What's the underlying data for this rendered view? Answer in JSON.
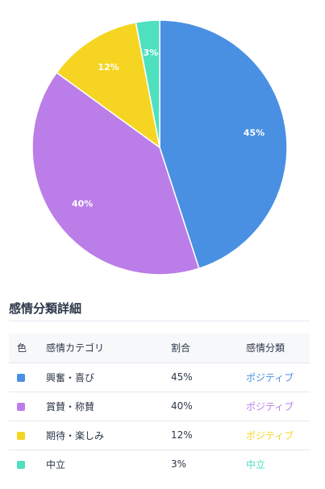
{
  "chart_data": {
    "type": "pie",
    "categories": [
      "興奮・喜び",
      "賞賛・称賛",
      "期待・楽しみ",
      "中立"
    ],
    "values": [
      45,
      40,
      12,
      3
    ],
    "labels": [
      "45%",
      "40%",
      "12%",
      "3%"
    ],
    "colors": [
      "#4a90e2",
      "#bb7de8",
      "#f5d522",
      "#4fe0c0"
    ]
  },
  "section": {
    "title": "感情分類詳細"
  },
  "table": {
    "headers": {
      "color": "色",
      "category": "感情カテゴリ",
      "ratio": "割合",
      "sentiment": "感情分類"
    },
    "rows": [
      {
        "color": "#4a90e2",
        "category": "興奮・喜び",
        "ratio": "45%",
        "sentiment": "ポジティブ"
      },
      {
        "color": "#bb7de8",
        "category": "賞賛・称賛",
        "ratio": "40%",
        "sentiment": "ポジティブ"
      },
      {
        "color": "#f5d522",
        "category": "期待・楽しみ",
        "ratio": "12%",
        "sentiment": "ポジティブ"
      },
      {
        "color": "#4fe0c0",
        "category": "中立",
        "ratio": "3%",
        "sentiment": "中立"
      }
    ]
  }
}
